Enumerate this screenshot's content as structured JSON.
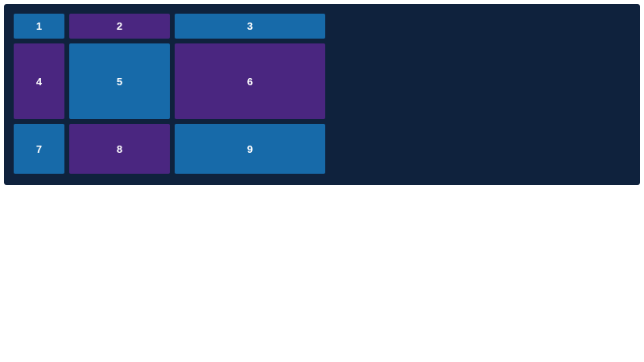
{
  "colors": {
    "background": "#0f223d",
    "blue": "#176aa9",
    "purple": "#4a2680"
  },
  "grid": {
    "cells": [
      {
        "label": "1",
        "color": "#176aa9"
      },
      {
        "label": "2",
        "color": "#4a2680"
      },
      {
        "label": "3",
        "color": "#176aa9"
      },
      {
        "label": "4",
        "color": "#4a2680"
      },
      {
        "label": "5",
        "color": "#176aa9"
      },
      {
        "label": "6",
        "color": "#4a2680"
      },
      {
        "label": "7",
        "color": "#176aa9"
      },
      {
        "label": "8",
        "color": "#4a2680"
      },
      {
        "label": "9",
        "color": "#176aa9"
      }
    ]
  }
}
